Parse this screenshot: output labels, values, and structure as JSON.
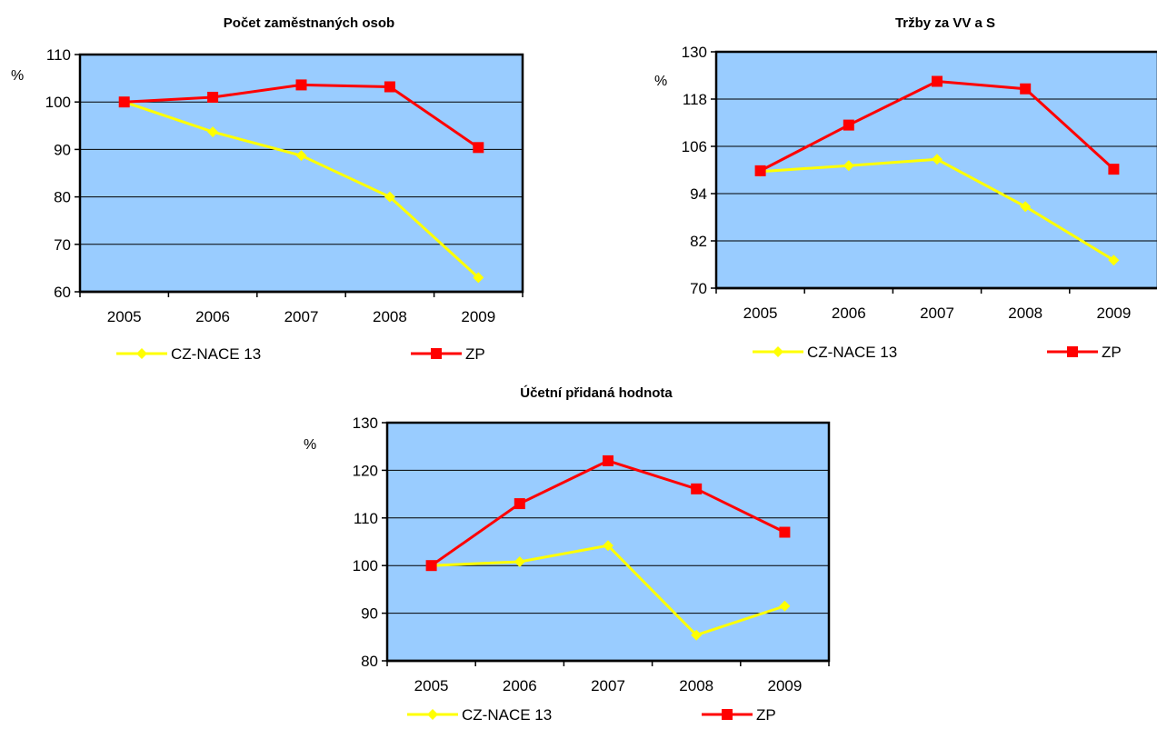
{
  "chart_data": [
    {
      "type": "line",
      "title": "Počet zaměstnaných osob",
      "ylabel": "%",
      "categories": [
        "2005",
        "2006",
        "2007",
        "2008",
        "2009"
      ],
      "ylim": [
        60,
        110
      ],
      "yticks": [
        60,
        70,
        80,
        90,
        100,
        110
      ],
      "grid": true,
      "legend_position": "bottom",
      "series": [
        {
          "name": "CZ-NACE 13",
          "color": "#ffff00",
          "marker": "diamond",
          "values": [
            100,
            93.7,
            88.7,
            80,
            63
          ]
        },
        {
          "name": "ZP",
          "color": "#ff0000",
          "marker": "square",
          "values": [
            100,
            101,
            103.6,
            103.2,
            90.4
          ]
        }
      ]
    },
    {
      "type": "line",
      "title": "Tržby za VV a S",
      "ylabel": "%",
      "categories": [
        "2005",
        "2006",
        "2007",
        "2008",
        "2009"
      ],
      "ylim": [
        70,
        130
      ],
      "yticks": [
        70,
        82,
        94,
        106,
        118,
        130
      ],
      "grid": true,
      "legend_position": "bottom",
      "series": [
        {
          "name": "CZ-NACE 13",
          "color": "#ffff00",
          "marker": "diamond",
          "values": [
            99.6,
            101.1,
            102.7,
            90.7,
            77.1
          ]
        },
        {
          "name": "ZP",
          "color": "#ff0000",
          "marker": "square",
          "values": [
            99.8,
            111.4,
            122.5,
            120.6,
            100.2
          ]
        }
      ]
    },
    {
      "type": "line",
      "title": "Účetní přidaná hodnota",
      "ylabel": "%",
      "categories": [
        "2005",
        "2006",
        "2007",
        "2008",
        "2009"
      ],
      "ylim": [
        80,
        130
      ],
      "yticks": [
        80,
        90,
        100,
        110,
        120,
        130
      ],
      "grid": true,
      "legend_position": "bottom",
      "series": [
        {
          "name": "CZ-NACE 13",
          "color": "#ffff00",
          "marker": "diamond",
          "values": [
            100,
            100.8,
            104.2,
            85.4,
            91.5
          ]
        },
        {
          "name": "ZP",
          "color": "#ff0000",
          "marker": "square",
          "values": [
            100,
            113,
            122,
            116.1,
            107
          ]
        }
      ]
    }
  ]
}
